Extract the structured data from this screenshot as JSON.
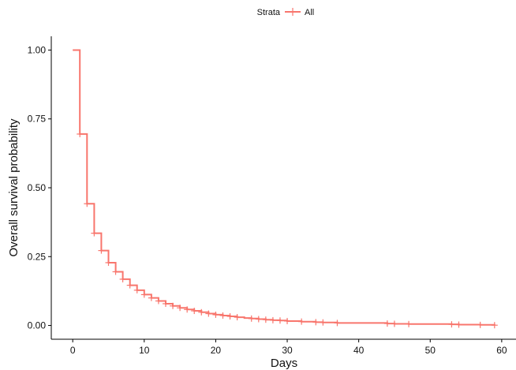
{
  "chart_data": {
    "type": "line",
    "style": "step",
    "title": "",
    "xlabel": "Days",
    "ylabel": "Overall survival probability",
    "xlim": [
      -3,
      62
    ],
    "ylim": [
      -0.05,
      1.05
    ],
    "x_ticks": [
      0,
      10,
      20,
      30,
      40,
      50,
      60
    ],
    "y_ticks": [
      0,
      0.25,
      0.5,
      0.75,
      1.0
    ],
    "y_tick_labels": [
      "0.00",
      "0.25",
      "0.50",
      "0.75",
      "1.00"
    ],
    "grid": false,
    "legend": {
      "title": "Strata",
      "position": "top",
      "entries": [
        "All"
      ]
    },
    "series": [
      {
        "name": "All",
        "color": "#F8766D",
        "steps": {
          "x": [
            0,
            1,
            2,
            3,
            4,
            5,
            6,
            7,
            8,
            9,
            10,
            11,
            12,
            13,
            14,
            15,
            16,
            17,
            18,
            19,
            20,
            21,
            22,
            23,
            24,
            25,
            26,
            27,
            28,
            29,
            30,
            32,
            34,
            35,
            37,
            44,
            45,
            47,
            53,
            54,
            57,
            59
          ],
          "y": [
            1.0,
            0.695,
            0.442,
            0.335,
            0.272,
            0.228,
            0.195,
            0.168,
            0.146,
            0.128,
            0.112,
            0.1,
            0.089,
            0.079,
            0.071,
            0.064,
            0.058,
            0.053,
            0.048,
            0.043,
            0.039,
            0.036,
            0.033,
            0.03,
            0.027,
            0.025,
            0.023,
            0.021,
            0.019,
            0.018,
            0.016,
            0.014,
            0.012,
            0.011,
            0.009,
            0.007,
            0.006,
            0.005,
            0.004,
            0.003,
            0.002,
            0.001
          ]
        },
        "censor_marks": {
          "x": [
            1,
            2,
            3,
            4,
            5,
            6,
            7,
            8,
            9,
            10,
            11,
            12,
            13,
            14,
            15,
            16,
            17,
            18,
            19,
            20,
            21,
            22,
            23,
            25,
            26,
            27,
            28,
            29,
            30,
            32,
            34,
            35,
            37,
            44,
            45,
            47,
            53,
            54,
            57,
            59
          ],
          "y": [
            0.695,
            0.442,
            0.335,
            0.272,
            0.228,
            0.195,
            0.168,
            0.146,
            0.128,
            0.112,
            0.1,
            0.089,
            0.079,
            0.071,
            0.064,
            0.058,
            0.053,
            0.048,
            0.043,
            0.039,
            0.036,
            0.033,
            0.03,
            0.025,
            0.023,
            0.021,
            0.019,
            0.018,
            0.016,
            0.014,
            0.012,
            0.011,
            0.009,
            0.007,
            0.006,
            0.005,
            0.004,
            0.003,
            0.002,
            0.001
          ]
        }
      }
    ]
  }
}
